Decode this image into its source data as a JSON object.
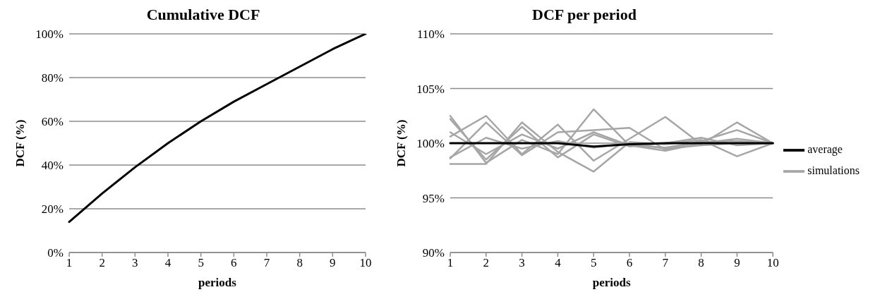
{
  "chart_data": [
    {
      "type": "line",
      "title": "Cumulative DCF",
      "xlabel": "periods",
      "ylabel": "DCF (%)",
      "categories": [
        "1",
        "2",
        "3",
        "4",
        "5",
        "6",
        "7",
        "8",
        "9",
        "10"
      ],
      "series": [
        {
          "color": "#000000",
          "values": [
            14,
            27,
            39,
            50,
            60,
            69,
            77,
            85,
            93,
            100
          ]
        }
      ],
      "ylim": [
        0,
        100
      ],
      "yticks": [
        {
          "value": 0,
          "label": "0%"
        },
        {
          "value": 20,
          "label": "20%"
        },
        {
          "value": 40,
          "label": "40%"
        },
        {
          "value": 60,
          "label": "60%"
        },
        {
          "value": 80,
          "label": "80%"
        },
        {
          "value": 100,
          "label": "100%"
        }
      ],
      "grid": "y",
      "legend": false,
      "marker": "none",
      "line_style": "solid"
    },
    {
      "type": "line",
      "title": "DCF per period",
      "xlabel": "periods",
      "ylabel": "DCF (%)",
      "categories": [
        "1",
        "2",
        "3",
        "4",
        "5",
        "6",
        "7",
        "8",
        "9",
        "10"
      ],
      "series": [
        {
          "name": "simulations",
          "color": "#a6a6a6",
          "values": [
            102.5,
            98.2,
            100.3,
            99.0,
            103.1,
            99.8,
            99.6,
            100.1,
            100.2,
            100
          ]
        },
        {
          "color": "#a6a6a6",
          "values": [
            100.6,
            102.5,
            99.0,
            101.7,
            98.4,
            100.4,
            102.4,
            99.9,
            101.9,
            100
          ]
        },
        {
          "color": "#a6a6a6",
          "values": [
            98.6,
            101.9,
            98.9,
            101.0,
            101.2,
            101.4,
            99.4,
            100.2,
            101.2,
            100
          ]
        },
        {
          "color": "#a6a6a6",
          "values": [
            98.1,
            98.1,
            101.9,
            99.2,
            97.4,
            100.1,
            99.9,
            100.3,
            98.8,
            100
          ]
        },
        {
          "color": "#a6a6a6",
          "values": [
            102.2,
            98.5,
            101.5,
            98.7,
            100.8,
            99.7,
            100.0,
            100.5,
            99.8,
            100
          ]
        },
        {
          "color": "#a6a6a6",
          "values": [
            98.7,
            100.5,
            99.5,
            100.2,
            99.6,
            100.0,
            99.5,
            99.8,
            100.0,
            100
          ]
        },
        {
          "color": "#a6a6a6",
          "values": [
            101.0,
            99.0,
            100.8,
            99.5,
            101.0,
            99.8,
            99.3,
            100.0,
            100.4,
            100
          ]
        },
        {
          "name": "average",
          "color": "#000000",
          "values": [
            100,
            100,
            100,
            100,
            99.7,
            99.9,
            100,
            100,
            100,
            100
          ]
        }
      ],
      "ylim": [
        90,
        110
      ],
      "yticks": [
        {
          "value": 90,
          "label": "90%"
        },
        {
          "value": 95,
          "label": "95%"
        },
        {
          "value": 100,
          "label": "100%"
        },
        {
          "value": 105,
          "label": "105%"
        },
        {
          "value": 110,
          "label": "110%"
        }
      ],
      "grid": "y",
      "legend": "right",
      "marker": "none",
      "line_style": "solid"
    }
  ]
}
